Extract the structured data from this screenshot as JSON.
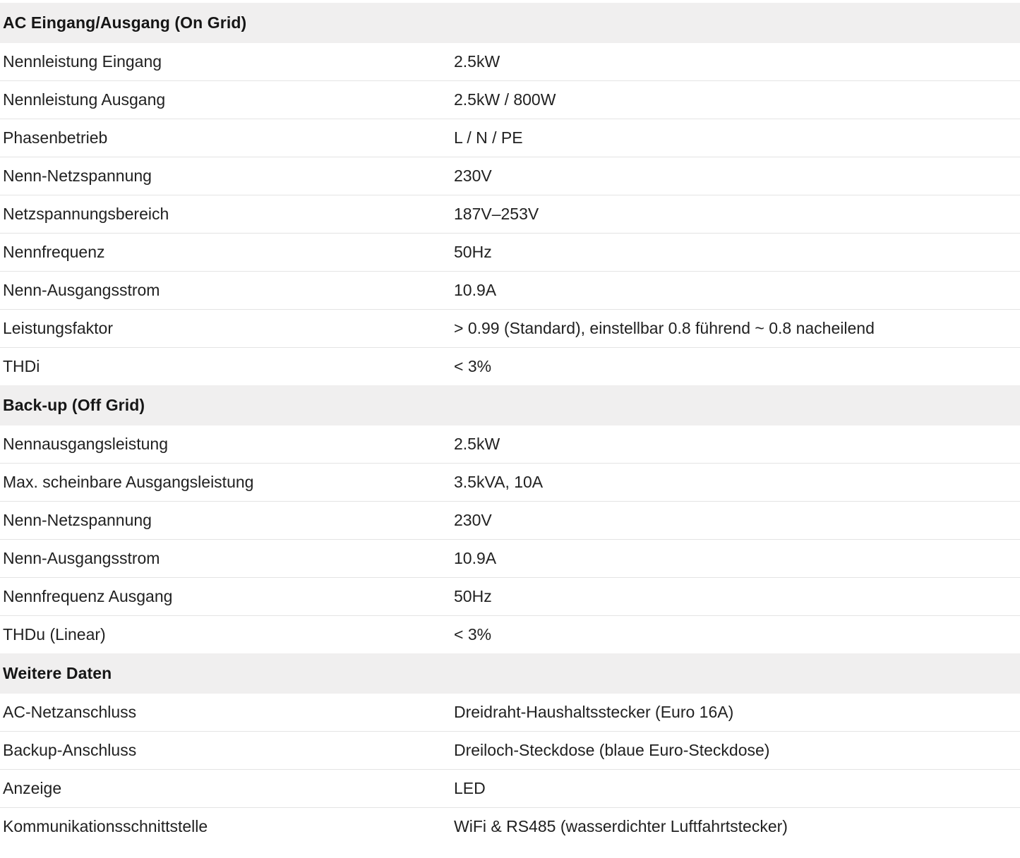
{
  "table": {
    "colors": {
      "header_bg": "#f0efef",
      "row_border": "#e4e4e4",
      "text": "#212121"
    },
    "sections": [
      {
        "title": "AC Eingang/Ausgang (On Grid)",
        "rows": [
          {
            "label": "Nennleistung Eingang",
            "value": "2.5kW"
          },
          {
            "label": "Nennleistung Ausgang",
            "value": "2.5kW / 800W"
          },
          {
            "label": "Phasenbetrieb",
            "value": "L / N / PE"
          },
          {
            "label": "Nenn-Netzspannung",
            "value": "230V"
          },
          {
            "label": "Netzspannungsbereich",
            "value": "187V–253V"
          },
          {
            "label": "Nennfrequenz",
            "value": "50Hz"
          },
          {
            "label": "Nenn-Ausgangsstrom",
            "value": "10.9A"
          },
          {
            "label": "Leistungsfaktor",
            "value": "> 0.99 (Standard), einstellbar 0.8 führend ~ 0.8 nacheilend"
          },
          {
            "label": "THDi",
            "value": "< 3%"
          }
        ]
      },
      {
        "title": "Back-up (Off Grid)",
        "rows": [
          {
            "label": "Nennausgangsleistung",
            "value": "2.5kW"
          },
          {
            "label": "Max. scheinbare Ausgangsleistung",
            "value": "3.5kVA, 10A"
          },
          {
            "label": "Nenn-Netzspannung",
            "value": "230V"
          },
          {
            "label": "Nenn-Ausgangsstrom",
            "value": "10.9A"
          },
          {
            "label": "Nennfrequenz Ausgang",
            "value": "50Hz"
          },
          {
            "label": "THDu (Linear)",
            "value": "< 3%"
          }
        ]
      },
      {
        "title": "Weitere Daten",
        "rows": [
          {
            "label": "AC-Netzanschluss",
            "value": "Dreidraht-Haushaltsstecker (Euro 16A)"
          },
          {
            "label": "Backup-Anschluss",
            "value": "Dreiloch-Steckdose (blaue Euro-Steckdose)"
          },
          {
            "label": "Anzeige",
            "value": "LED"
          },
          {
            "label": "Kommunikationsschnittstelle",
            "value": "WiFi & RS485 (wasserdichter Luftfahrtstecker)"
          }
        ]
      }
    ]
  }
}
